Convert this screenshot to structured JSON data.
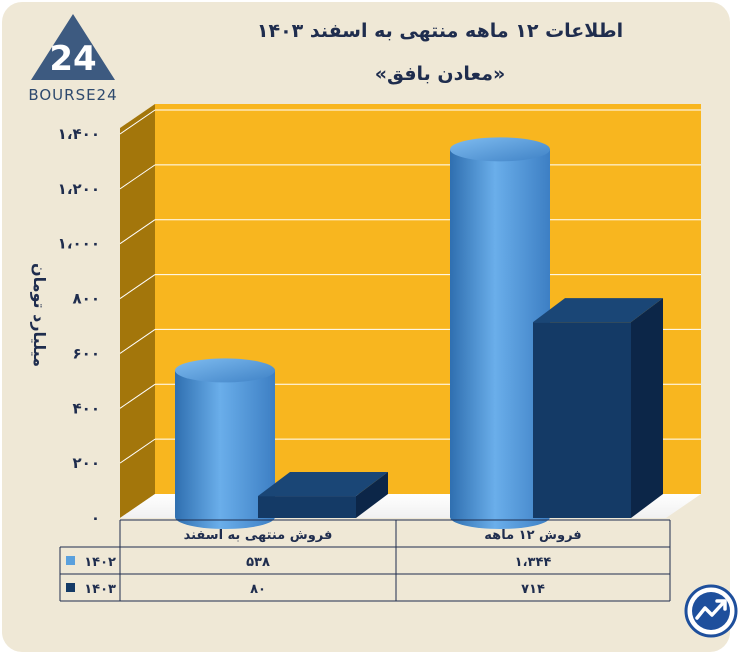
{
  "brand": {
    "logo_text": "BOURSE24",
    "logo_mark": "24"
  },
  "header": {
    "title": "اطلاعات ۱۲ ماهه منتهی به اسفند ۱۴۰۳",
    "subtitle": "«معادن بافق»"
  },
  "colors": {
    "background": "#efe8d6",
    "plot_back": "#f8b61f",
    "plot_side": "#a3760b",
    "floor": "#ffffff",
    "series_1402": "#5aa0dd",
    "series_1403": "#143a66",
    "text": "#1f2d4e"
  },
  "chart_data": {
    "type": "bar",
    "title": "اطلاعات ۱۲ ماهه منتهی به اسفند ۱۴۰۳",
    "subtitle": "«معادن بافق»",
    "ylabel": "میلیارد تومان",
    "xlabel": "",
    "ylim": [
      0,
      1400
    ],
    "yticks": [
      0,
      200,
      400,
      600,
      800,
      1000,
      1200,
      1400
    ],
    "ytick_labels": [
      "۰",
      "۲۰۰",
      "۴۰۰",
      "۶۰۰",
      "۸۰۰",
      "۱،۰۰۰",
      "۱،۲۰۰",
      "۱،۴۰۰"
    ],
    "categories": [
      "فروش منتهی به  اسفند",
      "فروش ۱۲ ماهه"
    ],
    "series": [
      {
        "name": "۱۴۰۲",
        "values": [
          538,
          1344
        ],
        "value_labels": [
          "۵۳۸",
          "۱،۳۴۴"
        ],
        "shape": "cylinder"
      },
      {
        "name": "۱۴۰۳",
        "values": [
          80,
          714
        ],
        "value_labels": [
          "۸۰",
          "۷۱۴"
        ],
        "shape": "box"
      }
    ],
    "grid": true,
    "legend": "data-table-left"
  }
}
